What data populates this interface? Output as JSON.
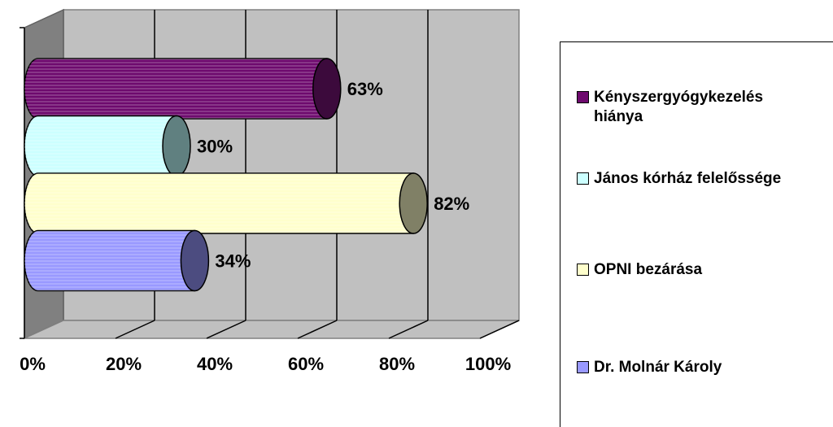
{
  "chart_data": {
    "type": "bar",
    "orientation": "horizontal",
    "style": "3d-cylinder",
    "categories": [
      "Kényszergyógykezelés hiánya",
      "János kórház felelőssége",
      "OPNI bezárása",
      "Dr. Molnár Károly"
    ],
    "values": [
      63,
      30,
      82,
      34
    ],
    "value_labels": [
      "63%",
      "30%",
      "82%",
      "34%"
    ],
    "xlim": [
      0,
      100
    ],
    "x_ticks": [
      "0%",
      "20%",
      "40%",
      "60%",
      "80%",
      "100%"
    ],
    "grid": "vertical",
    "legend_position": "right",
    "colors": [
      "#6e0a6e",
      "#ccffff",
      "#ffffcc",
      "#9999ff"
    ],
    "end_colors": [
      "#3c0a3c",
      "#608080",
      "#808066",
      "#4c4c80"
    ]
  },
  "legend": {
    "items": [
      {
        "label": "Kényszergyógykezelés\nhiánya",
        "color": "#6e0a6e"
      },
      {
        "label": "János kórház felelőssége",
        "color": "#ccffff"
      },
      {
        "label": "OPNI bezárása",
        "color": "#ffffcc"
      },
      {
        "label": "Dr. Molnár Károly",
        "color": "#9999ff"
      }
    ]
  }
}
